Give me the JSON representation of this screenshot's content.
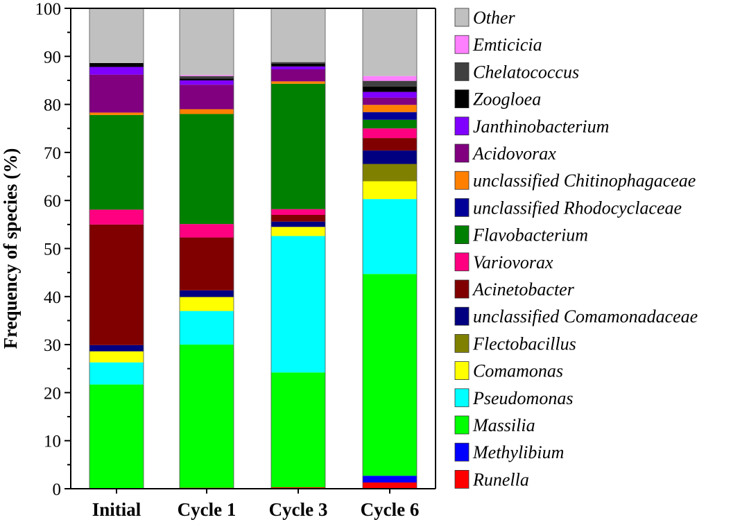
{
  "chart_data": {
    "type": "bar",
    "stacked": true,
    "title": "",
    "xlabel": "",
    "ylabel": "Frequency of species (%)",
    "ylim": [
      0,
      100
    ],
    "yticks": [
      "0",
      "10",
      "20",
      "30",
      "40",
      "50",
      "60",
      "70",
      "80",
      "90",
      "100"
    ],
    "categories": [
      "Initial",
      "Cycle 1",
      "Cycle 3",
      "Cycle 6"
    ],
    "series": [
      {
        "name": "Runella",
        "color": "#ff0000",
        "values": [
          0,
          0.2,
          0.3,
          1.3
        ]
      },
      {
        "name": "Methylibium",
        "color": "#0000ff",
        "values": [
          0,
          0,
          0,
          1.4
        ]
      },
      {
        "name": "Massilia",
        "color": "#00ff00",
        "values": [
          21.7,
          29.8,
          23.9,
          42.0
        ]
      },
      {
        "name": "Pseudomonas",
        "color": "#00ffff",
        "values": [
          4.6,
          7.0,
          28.4,
          15.6
        ]
      },
      {
        "name": "Comamonas",
        "color": "#ffff00",
        "values": [
          2.3,
          2.9,
          1.9,
          3.7
        ]
      },
      {
        "name": "Flectobacillus",
        "color": "#808000",
        "values": [
          0,
          0,
          0,
          3.6
        ]
      },
      {
        "name": "unclassified Comamonadaceae",
        "color": "#000080",
        "values": [
          1.3,
          1.4,
          1.1,
          2.8
        ]
      },
      {
        "name": "Acinetobacter",
        "color": "#800000",
        "values": [
          25.1,
          11.0,
          1.4,
          2.6
        ]
      },
      {
        "name": "Variovorax",
        "color": "#ff0080",
        "values": [
          3.1,
          2.8,
          1.2,
          2.0
        ]
      },
      {
        "name": "Flavobacterium",
        "color": "#008000",
        "values": [
          19.7,
          22.9,
          26.1,
          1.8
        ]
      },
      {
        "name": "unclassified Rhodocyclaceae",
        "color": "#000099",
        "values": [
          0,
          0,
          0,
          1.6
        ]
      },
      {
        "name": "unclassified Chitinophagaceae",
        "color": "#ff8000",
        "values": [
          0.5,
          1.0,
          0.5,
          1.5
        ]
      },
      {
        "name": "Acidovorax",
        "color": "#800080",
        "values": [
          7.9,
          5.1,
          2.5,
          1.5
        ]
      },
      {
        "name": "Janthinobacterium",
        "color": "#8000ff",
        "values": [
          1.6,
          0.9,
          0.6,
          1.2
        ]
      },
      {
        "name": "Zoogloea",
        "color": "#000000",
        "values": [
          0.8,
          0.4,
          0.6,
          1.1
        ]
      },
      {
        "name": "Chelatococcus",
        "color": "#404040",
        "values": [
          0,
          0.5,
          0.3,
          1.2
        ]
      },
      {
        "name": "Emticicia",
        "color": "#ff80ff",
        "values": [
          0,
          0.2,
          0,
          1.0
        ]
      },
      {
        "name": "Other",
        "color": "#c0c0c0",
        "values": [
          11.4,
          13.9,
          11.2,
          13.9
        ]
      }
    ],
    "legend": {
      "position": "right",
      "order": [
        "Other",
        "Emticicia",
        "Chelatococcus",
        "Zoogloea",
        "Janthinobacterium",
        "Acidovorax",
        "unclassified Chitinophagaceae",
        "unclassified Rhodocyclaceae",
        "Flavobacterium",
        "Variovorax",
        "Acinetobacter",
        "unclassified Comamonadaceae",
        "Flectobacillus",
        "Comamonas",
        "Pseudomonas",
        "Massilia",
        "Methylibium",
        "Runella"
      ]
    }
  }
}
